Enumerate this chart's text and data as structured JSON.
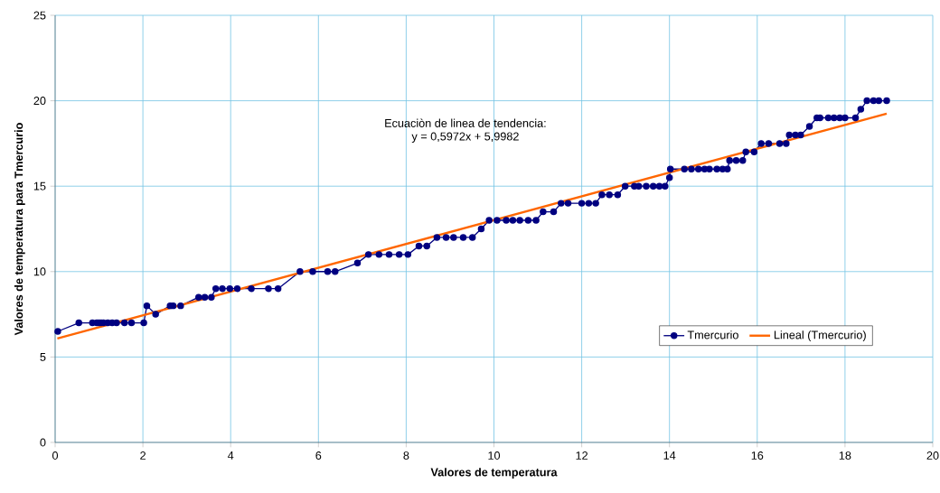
{
  "chart_data": {
    "type": "line",
    "xlabel": "Valores de temperatura",
    "ylabel": "Valores de temperatura para Tmercurio",
    "annotations": [
      "Ecuaciòn de linea de tendencia:",
      "y = 0,5972x + 5,9982"
    ],
    "xlim": [
      0,
      20
    ],
    "ylim": [
      0,
      25
    ],
    "xticks": [
      0,
      2,
      4,
      6,
      8,
      10,
      12,
      14,
      16,
      18,
      20
    ],
    "yticks": [
      0,
      5,
      10,
      15,
      20,
      25
    ],
    "grid": true,
    "legend": "bottom",
    "series": [
      {
        "name": "Tmercurio",
        "color": "#000080",
        "marker": "circle",
        "x": [
          0.06,
          0.54,
          0.85,
          0.95,
          1.0,
          1.05,
          1.1,
          1.2,
          1.3,
          1.4,
          1.58,
          1.74,
          2.02,
          2.09,
          2.29,
          2.62,
          2.69,
          2.86,
          3.27,
          3.41,
          3.56,
          3.66,
          3.81,
          3.98,
          4.15,
          4.47,
          4.86,
          5.08,
          5.58,
          5.87,
          6.21,
          6.38,
          6.89,
          7.14,
          7.38,
          7.61,
          7.84,
          8.04,
          8.29,
          8.47,
          8.7,
          8.91,
          9.08,
          9.3,
          9.51,
          9.71,
          9.89,
          10.07,
          10.28,
          10.43,
          10.59,
          10.78,
          10.96,
          11.12,
          11.36,
          11.53,
          11.69,
          12.0,
          12.16,
          12.32,
          12.46,
          12.63,
          12.82,
          12.99,
          13.2,
          13.3,
          13.47,
          13.63,
          13.77,
          13.9,
          14.0,
          14.02,
          14.34,
          14.5,
          14.66,
          14.8,
          14.91,
          15.08,
          15.21,
          15.32,
          15.37,
          15.52,
          15.67,
          15.74,
          15.93,
          16.09,
          16.26,
          16.51,
          16.66,
          16.73,
          16.87,
          16.99,
          17.19,
          17.36,
          17.43,
          17.62,
          17.75,
          17.88,
          18.0,
          18.24,
          18.36,
          18.5,
          18.65,
          18.77,
          18.95
        ],
        "values": [
          6.5,
          7,
          7,
          7,
          7,
          7,
          7,
          7,
          7,
          7,
          7,
          7,
          7,
          8,
          7.5,
          8,
          8,
          8,
          8.5,
          8.5,
          8.5,
          9,
          9,
          9,
          9,
          9,
          9,
          9,
          10,
          10,
          10,
          10,
          10.5,
          11,
          11,
          11,
          11,
          11,
          11.5,
          11.5,
          12,
          12,
          12,
          12,
          12,
          12.5,
          13,
          13,
          13,
          13,
          13,
          13,
          13,
          13.5,
          13.5,
          14,
          14,
          14,
          14,
          14,
          14.5,
          14.5,
          14.5,
          15,
          15,
          15,
          15,
          15,
          15,
          15,
          15.5,
          16,
          16,
          16,
          16,
          16,
          16,
          16,
          16,
          16,
          16.5,
          16.5,
          16.5,
          17,
          17,
          17.5,
          17.5,
          17.5,
          17.5,
          18,
          18,
          18,
          18.5,
          19,
          19,
          19,
          19,
          19,
          19,
          19,
          19.5,
          20,
          20,
          20,
          20
        ]
      },
      {
        "name": "Lineal (Tmercurio)",
        "color": "#ff6600",
        "marker": "none",
        "x": [
          0.05,
          18.95
        ],
        "values": [
          6.08,
          19.25
        ]
      }
    ]
  }
}
